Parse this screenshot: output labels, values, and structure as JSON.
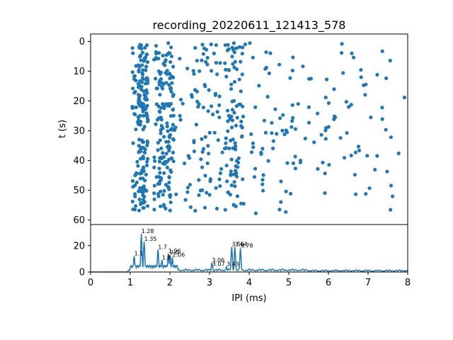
{
  "title": "recording_20220611_121413_578",
  "chart_data": [
    {
      "type": "scatter",
      "name": "raster",
      "ylabel": "t (s)",
      "xlim": [
        0,
        8
      ],
      "ylim": [
        61.5,
        -2.5
      ],
      "yticks": [
        0,
        10,
        20,
        30,
        40,
        50,
        60
      ],
      "color": "#1f77b4",
      "clusters": [
        {
          "x_range": [
            1.05,
            1.2
          ],
          "count": 35,
          "t_range": [
            0,
            57
          ]
        },
        {
          "x_range": [
            1.2,
            1.45
          ],
          "count": 150,
          "t_range": [
            0,
            57
          ]
        },
        {
          "x_range": [
            1.6,
            1.85
          ],
          "count": 75,
          "t_range": [
            0,
            57
          ]
        },
        {
          "x_range": [
            1.85,
            2.1
          ],
          "count": 90,
          "t_range": [
            0,
            57
          ]
        },
        {
          "x_range": [
            2.1,
            2.5
          ],
          "count": 15,
          "t_range": [
            0,
            58
          ]
        },
        {
          "x_range": [
            2.5,
            3.4
          ],
          "count": 80,
          "t_range": [
            0,
            58
          ]
        },
        {
          "x_range": [
            3.4,
            3.85
          ],
          "count": 90,
          "t_range": [
            0,
            57
          ]
        },
        {
          "x_range": [
            3.85,
            5.2
          ],
          "count": 60,
          "t_range": [
            0,
            59
          ]
        },
        {
          "x_range": [
            5.2,
            8.0
          ],
          "count": 70,
          "t_range": [
            0,
            58
          ]
        }
      ]
    },
    {
      "type": "line",
      "name": "histogram",
      "xlabel": "IPI (ms)",
      "xlim": [
        0,
        8
      ],
      "ylim": [
        0,
        36
      ],
      "xticks": [
        0,
        1,
        2,
        3,
        4,
        5,
        6,
        7,
        8
      ],
      "yticks": [
        0,
        20
      ],
      "color": "#1f77b4",
      "peaks": [
        {
          "x": 1.1,
          "y": 12,
          "label": "1.1"
        },
        {
          "x": 1.28,
          "y": 29,
          "label": "1.28"
        },
        {
          "x": 1.35,
          "y": 23,
          "label": "1.35"
        },
        {
          "x": 1.7,
          "y": 17,
          "label": "1.7"
        },
        {
          "x": 1.8,
          "y": 9,
          "label": "1.8"
        },
        {
          "x": 1.96,
          "y": 14,
          "label": "1.96"
        },
        {
          "x": 2.0,
          "y": 13,
          "label": "2.0"
        },
        {
          "x": 2.06,
          "y": 11,
          "label": "2.06"
        },
        {
          "x": 3.06,
          "y": 7,
          "label": "3.06"
        },
        {
          "x": 3.07,
          "y": 4,
          "label": "3.07"
        },
        {
          "x": 3.43,
          "y": 4,
          "label": "3.43"
        },
        {
          "x": 3.56,
          "y": 19,
          "label": "3.56"
        },
        {
          "x": 3.64,
          "y": 19,
          "label": "3.64"
        },
        {
          "x": 3.78,
          "y": 18,
          "label": "3.78"
        }
      ],
      "baseline_noise": 2.5
    }
  ]
}
